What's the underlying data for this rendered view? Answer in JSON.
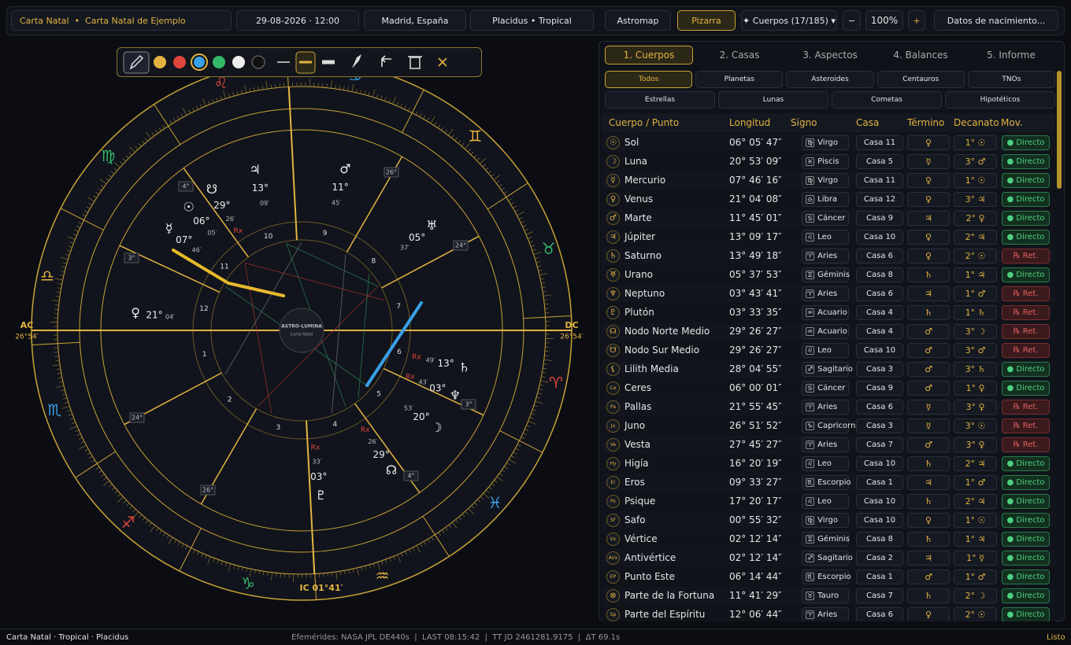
{
  "top_bar": {
    "chart": "Carta Natal  •  Carta Natal de Ejemplo",
    "date": "29-08-2026 · 12:00",
    "place": "Madrid, España",
    "system": "Placidus • Tropical",
    "astromap": "Astromap",
    "pizarra": "Pizarra",
    "bodies": "✦ Cuerpos (17/185) ▾",
    "zoom_out": "−",
    "zoom": "100%",
    "zoom_in": "+",
    "birth_data": "Datos de nacimiento..."
  },
  "wheel": {
    "center_title": "ASTRO-LUMINA",
    "center_sub": "Carta Natal",
    "ac": "AC",
    "ac_deg": "26°54′",
    "dc": "DC",
    "dc_deg": "26°54′",
    "ic": "IC 01°41′",
    "signs": [
      {
        "glyph": "♈",
        "color": "#e0463c"
      },
      {
        "glyph": "♉",
        "color": "#34b86a"
      },
      {
        "glyph": "♊",
        "color": "#e3b341"
      },
      {
        "glyph": "♋",
        "color": "#3aa0e8"
      },
      {
        "glyph": "♌",
        "color": "#e0463c"
      },
      {
        "glyph": "♍",
        "color": "#34b86a"
      },
      {
        "glyph": "♎",
        "color": "#e3b341"
      },
      {
        "glyph": "♏",
        "color": "#3aa0e8"
      },
      {
        "glyph": "♐",
        "color": "#e0463c"
      },
      {
        "glyph": "♑",
        "color": "#34b86a"
      },
      {
        "glyph": "♒",
        "color": "#e3b341"
      },
      {
        "glyph": "♓",
        "color": "#3aa0e8"
      }
    ],
    "house_numbers": [
      "1",
      "2",
      "3",
      "4",
      "5",
      "6",
      "7",
      "8",
      "9",
      "10",
      "11",
      "12"
    ],
    "cusp_labels": [
      "4°",
      "3°",
      "24°",
      "26°",
      "4°",
      "3°",
      "24°",
      "26°"
    ],
    "planets": [
      {
        "glyph": "☉",
        "deg": "06°",
        "min": "05′"
      },
      {
        "glyph": "☽",
        "deg": "20°",
        "min": "53′"
      },
      {
        "glyph": "☿",
        "deg": "07°",
        "min": "46′"
      },
      {
        "glyph": "♀",
        "deg": "21°",
        "min": "04′"
      },
      {
        "glyph": "♂",
        "deg": "11°",
        "min": "45′"
      },
      {
        "glyph": "♃",
        "deg": "13°",
        "min": "09′"
      },
      {
        "glyph": "♄",
        "deg": "13°",
        "min": "49′",
        "rx": "Rx"
      },
      {
        "glyph": "♅",
        "deg": "05°",
        "min": "37′"
      },
      {
        "glyph": "♆",
        "deg": "03°",
        "min": "43′",
        "rx": "Rx"
      },
      {
        "glyph": "♇",
        "deg": "03°",
        "min": "33′",
        "rx": "Rx"
      },
      {
        "glyph": "☊",
        "deg": "29°",
        "min": "26′",
        "rx": "Rx"
      },
      {
        "glyph": "☋",
        "deg": "29°",
        "min": "26′",
        "rx": "Rx"
      }
    ]
  },
  "panel": {
    "tabs": [
      "1. Cuerpos",
      "2. Casas",
      "3. Aspectos",
      "4. Balances",
      "5. Informe"
    ],
    "filters": [
      [
        "Todos",
        "Planetas",
        "Asteroides",
        "Centauros",
        "TNOs"
      ],
      [
        "Estrellas",
        "Lunas",
        "Cometas",
        "Hipotéticos"
      ]
    ],
    "columns": [
      "Cuerpo / Punto",
      "Longitud",
      "Signo",
      "Casa",
      "Término",
      "Decanato",
      "Mov."
    ],
    "rows": [
      {
        "icon": "☉",
        "name": "Sol",
        "longitude": "06° 05′ 47″",
        "sign_glyph": "♍",
        "sign": "Virgo",
        "house": "Casa 11",
        "term": "♀",
        "decan": "1° ☉",
        "motion": "● Directo"
      },
      {
        "icon": "☽",
        "name": "Luna",
        "longitude": "20° 53′ 09″",
        "sign_glyph": "♓",
        "sign": "Piscis",
        "house": "Casa 5",
        "term": "☿",
        "decan": "3° ♂",
        "motion": "● Directo"
      },
      {
        "icon": "☿",
        "name": "Mercurio",
        "longitude": "07° 46′ 16″",
        "sign_glyph": "♍",
        "sign": "Virgo",
        "house": "Casa 11",
        "term": "♀",
        "decan": "1° ☉",
        "motion": "● Directo"
      },
      {
        "icon": "♀",
        "name": "Venus",
        "longitude": "21° 04′ 08″",
        "sign_glyph": "♎",
        "sign": "Libra",
        "house": "Casa 12",
        "term": "♀",
        "decan": "3° ♃",
        "motion": "● Directo"
      },
      {
        "icon": "♂",
        "name": "Marte",
        "longitude": "11° 45′ 01″",
        "sign_glyph": "♋",
        "sign": "Cáncer",
        "house": "Casa 9",
        "term": "♃",
        "decan": "2° ♀",
        "motion": "● Directo"
      },
      {
        "icon": "♃",
        "name": "Júpiter",
        "longitude": "13° 09′ 17″",
        "sign_glyph": "♌",
        "sign": "Leo",
        "house": "Casa 10",
        "term": "♀",
        "decan": "2° ♃",
        "motion": "● Directo"
      },
      {
        "icon": "♄",
        "name": "Saturno",
        "longitude": "13° 49′ 18″",
        "sign_glyph": "♈",
        "sign": "Aries",
        "house": "Casa 6",
        "term": "♀",
        "decan": "2° ☉",
        "motion": "℞ Ret."
      },
      {
        "icon": "♅",
        "name": "Urano",
        "longitude": "05° 37′ 53″",
        "sign_glyph": "♊",
        "sign": "Géminis",
        "house": "Casa 8",
        "term": "♄",
        "decan": "1° ♃",
        "motion": "● Directo"
      },
      {
        "icon": "♆",
        "name": "Neptuno",
        "longitude": "03° 43′ 41″",
        "sign_glyph": "♈",
        "sign": "Aries",
        "house": "Casa 6",
        "term": "♃",
        "decan": "1° ♂",
        "motion": "℞ Ret."
      },
      {
        "icon": "♇",
        "name": "Plutón",
        "longitude": "03° 33′ 35″",
        "sign_glyph": "♒",
        "sign": "Acuario",
        "house": "Casa 4",
        "term": "♄",
        "decan": "1° ♄",
        "motion": "℞ Ret."
      },
      {
        "icon": "☊",
        "name": "Nodo Norte Medio",
        "longitude": "29° 26′ 27″",
        "sign_glyph": "♒",
        "sign": "Acuario",
        "house": "Casa 4",
        "term": "♂",
        "decan": "3° ☽",
        "motion": "℞ Ret."
      },
      {
        "icon": "☋",
        "name": "Nodo Sur Medio",
        "longitude": "29° 26′ 27″",
        "sign_glyph": "♌",
        "sign": "Leo",
        "house": "Casa 10",
        "term": "♂",
        "decan": "3° ♂",
        "motion": "℞ Ret."
      },
      {
        "icon": "⚸",
        "name": "Lilith Media",
        "longitude": "28° 04′ 55″",
        "sign_glyph": "♐",
        "sign": "Sagitario",
        "house": "Casa 3",
        "term": "♂",
        "decan": "3° ♄",
        "motion": "● Directo"
      },
      {
        "icon": "Ce",
        "name": "Ceres",
        "longitude": "06° 00′ 01″",
        "sign_glyph": "♋",
        "sign": "Cáncer",
        "house": "Casa 9",
        "term": "♂",
        "decan": "1° ♀",
        "motion": "● Directo"
      },
      {
        "icon": "Pa",
        "name": "Pallas",
        "longitude": "21° 55′ 45″",
        "sign_glyph": "♈",
        "sign": "Aries",
        "house": "Casa 6",
        "term": "☿",
        "decan": "3° ♀",
        "motion": "℞ Ret."
      },
      {
        "icon": "Ju",
        "name": "Juno",
        "longitude": "26° 51′ 52″",
        "sign_glyph": "♑",
        "sign": "Capricornio",
        "house": "Casa 3",
        "term": "☿",
        "decan": "3° ☉",
        "motion": "℞ Ret."
      },
      {
        "icon": "Ve",
        "name": "Vesta",
        "longitude": "27° 45′ 27″",
        "sign_glyph": "♈",
        "sign": "Aries",
        "house": "Casa 7",
        "term": "♂",
        "decan": "3° ♀",
        "motion": "℞ Ret."
      },
      {
        "icon": "Hy",
        "name": "Higía",
        "longitude": "16° 20′ 19″",
        "sign_glyph": "♌",
        "sign": "Leo",
        "house": "Casa 10",
        "term": "♄",
        "decan": "2° ♃",
        "motion": "● Directo"
      },
      {
        "icon": "Er",
        "name": "Eros",
        "longitude": "09° 33′ 27″",
        "sign_glyph": "♏",
        "sign": "Escorpio",
        "house": "Casa 1",
        "term": "♃",
        "decan": "1° ♂",
        "motion": "● Directo"
      },
      {
        "icon": "Ps",
        "name": "Psique",
        "longitude": "17° 20′ 17″",
        "sign_glyph": "♌",
        "sign": "Leo",
        "house": "Casa 10",
        "term": "♄",
        "decan": "2° ♃",
        "motion": "● Directo"
      },
      {
        "icon": "SF",
        "name": "Safo",
        "longitude": "00° 55′ 32″",
        "sign_glyph": "♍",
        "sign": "Virgo",
        "house": "Casa 10",
        "term": "♀",
        "decan": "1° ☉",
        "motion": "● Directo"
      },
      {
        "icon": "Vx",
        "name": "Vértice",
        "longitude": "02° 12′ 14″",
        "sign_glyph": "♊",
        "sign": "Géminis",
        "house": "Casa 8",
        "term": "♄",
        "decan": "1° ♃",
        "motion": "● Directo"
      },
      {
        "icon": "AVx",
        "name": "Antivértice",
        "longitude": "02° 12′ 14″",
        "sign_glyph": "♐",
        "sign": "Sagitario",
        "house": "Casa 2",
        "term": "♃",
        "decan": "1° ☿",
        "motion": "● Directo"
      },
      {
        "icon": "EP",
        "name": "Punto Este",
        "longitude": "06° 14′ 44″",
        "sign_glyph": "♏",
        "sign": "Escorpio",
        "house": "Casa 1",
        "term": "♂",
        "decan": "1° ♂",
        "motion": "● Directo"
      },
      {
        "icon": "⊗",
        "name": "Parte de la Fortuna",
        "longitude": "11° 41′ 29″",
        "sign_glyph": "♉",
        "sign": "Tauro",
        "house": "Casa 7",
        "term": "♄",
        "decan": "2° ☽",
        "motion": "● Directo"
      },
      {
        "icon": "Sp",
        "name": "Parte del Espíritu",
        "longitude": "12° 06′ 44″",
        "sign_glyph": "♈",
        "sign": "Aries",
        "house": "Casa 6",
        "term": "♀",
        "decan": "2° ☉",
        "motion": "● Directo"
      }
    ]
  },
  "status": {
    "left": "Carta Natal · Tropical · Placidus",
    "center": "Efemérides: NASA JPL DE440s  |  LAST 08:15:42  |  TT JD 2461281.9175  |  ΔT 69.1s",
    "right": "Listo"
  }
}
